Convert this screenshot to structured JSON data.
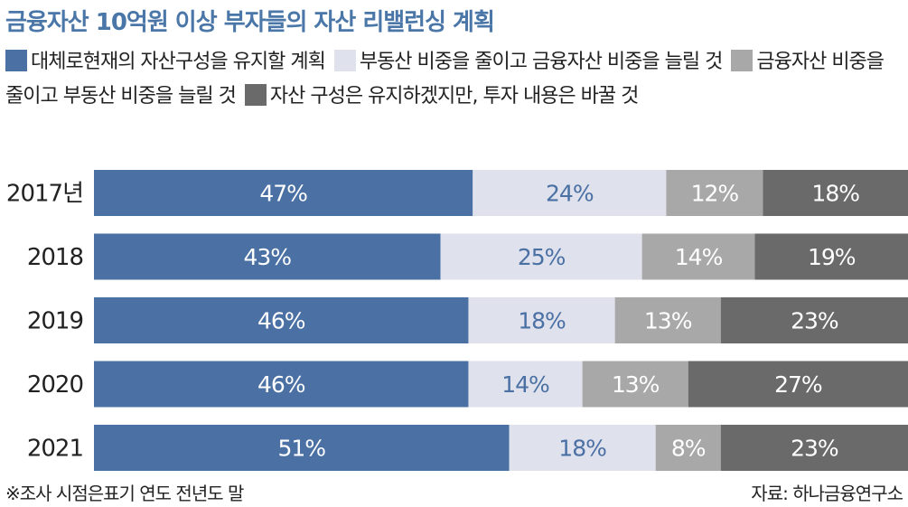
{
  "header": {
    "title": "금융자산 10억원 이상 부자들의 자산 리밸런싱 계획"
  },
  "chart_data": {
    "type": "bar",
    "orientation": "horizontal",
    "stacked": true,
    "title": "금융자산 10억원 이상 부자들의 자산 리밸런싱 계획",
    "xlabel": "",
    "ylabel": "",
    "xlim": [
      0,
      100
    ],
    "grid": false,
    "legend_position": "top",
    "categories": [
      "2017년",
      "2018",
      "2019",
      "2020",
      "2021"
    ],
    "series": [
      {
        "name": "대체로현재의 자산구성을 유지할 계획",
        "color": "#4a70a4",
        "text_color": "#ffffff",
        "values": [
          47,
          43,
          46,
          46,
          51
        ]
      },
      {
        "name": "부동산 비중을 줄이고 금융자산 비중을 늘릴 것",
        "color": "#dfe1ec",
        "text_color": "#4a70a4",
        "values": [
          24,
          25,
          18,
          14,
          18
        ]
      },
      {
        "name": "금융자산 비중을 줄이고 부동산 비중을 늘릴 것",
        "color": "#a8a8a8",
        "text_color": "#ffffff",
        "values": [
          12,
          14,
          13,
          13,
          8
        ]
      },
      {
        "name": "자산 구성은 유지하겠지만, 투자 내용은 바꿀 것",
        "color": "#6a6a6a",
        "text_color": "#ffffff",
        "values": [
          18,
          19,
          23,
          27,
          23
        ]
      }
    ]
  },
  "footer": {
    "note": "※조사 시점은표기 연도 전년도 말",
    "source": "자료: 하나금융연구소"
  }
}
